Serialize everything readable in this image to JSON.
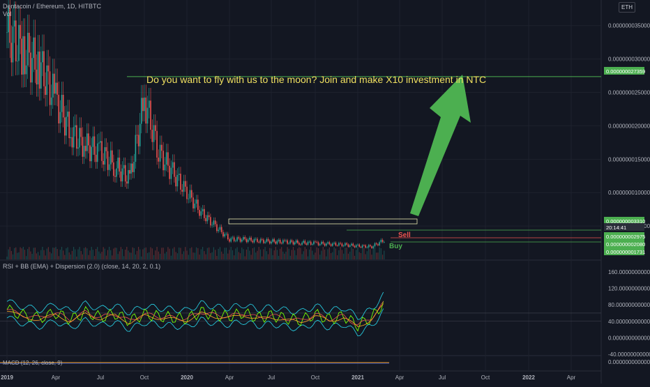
{
  "header": {
    "symbol": "Dentacoin / Ethereum, 1D, HITBTC",
    "volume_label": "Vol",
    "currency_button": "ETH"
  },
  "annotation": {
    "text": "Do you want to fly with us to the moon? Join and make X10 investment in NTC",
    "buy_label_1": "Buy",
    "buy_label_2": "Buy",
    "sell_label": "Sell"
  },
  "indicators": {
    "rsi_title": "RSI + BB (EMA) + Dispersion (2.0) (close, 14, 20, 2, 0.1)",
    "macd_title": "MACD (12, 26, close, 9)"
  },
  "colors": {
    "background": "#131722",
    "up_candle": "#26a69a",
    "down_candle": "#ef5350",
    "arrow": "#4caf50",
    "price_tag": "#4caf50",
    "annotation_text": "#f0e060"
  },
  "chart_data": [
    {
      "type": "candlestick",
      "title": "Dentacoin / Ethereum, 1D, HITBTC",
      "x_ticks": [
        "2019",
        "Apr",
        "Jul",
        "Oct",
        "2020",
        "Apr",
        "Jul",
        "Oct",
        "2021",
        "Apr",
        "Jul",
        "Oct",
        "2022",
        "Apr"
      ],
      "y_ticks": [
        "0.000000035000",
        "0.000000030000",
        "0.000000025000",
        "0.000000020000",
        "0.000000015000",
        "0.000000010000",
        "0.000000005000"
      ],
      "ylim": [
        0,
        3.8e-08
      ],
      "price_tags": [
        "0.000000027359",
        "0.000000003310",
        "20:14:41",
        "0.000000002975",
        "0.000000002080",
        "0.000000001731"
      ],
      "close_series": {
        "x": [
          "2019-01",
          "2019-02",
          "2019-03",
          "2019-04",
          "2019-05",
          "2019-06",
          "2019-07",
          "2019-08",
          "2019-09",
          "2019-10",
          "2019-11",
          "2019-12",
          "2020-01",
          "2020-02",
          "2020-03",
          "2020-04",
          "2020-05",
          "2020-06",
          "2020-07",
          "2020-08",
          "2020-09",
          "2020-10",
          "2020-11",
          "2020-12",
          "2021-01",
          "2021-02",
          "2021-03"
        ],
        "values": [
          3.4e-08,
          3.1e-08,
          2.9e-08,
          2.4e-08,
          1.9e-08,
          1.7e-08,
          1.6e-08,
          1.4e-08,
          1.2e-08,
          2.4e-08,
          1.6e-08,
          1.3e-08,
          1e-08,
          7e-09,
          5e-09,
          3e-09,
          3e-09,
          2.8e-09,
          2.7e-09,
          2.6e-09,
          2.5e-09,
          2.4e-09,
          2.3e-09,
          2.2e-09,
          2e-09,
          1.9e-09,
          3e-09
        ]
      },
      "target_level": 2.7359e-08,
      "grid": true
    },
    {
      "type": "line",
      "title": "RSI + BB (EMA) + Dispersion (2.0) (close, 14, 20, 2, 0.1)",
      "y_ticks": [
        "160.000000000000",
        "120.000000000000",
        "80.000000000000",
        "40.000000000000",
        "0.000000000000",
        "-40.000000000000"
      ],
      "ylim": [
        -40,
        170
      ],
      "rsi_values": [
        68,
        55,
        48,
        60,
        44,
        62,
        50,
        58,
        41,
        57,
        52,
        49,
        46,
        63,
        55,
        52,
        60,
        49,
        54,
        47,
        42,
        57,
        45,
        53,
        30,
        49,
        90
      ]
    },
    {
      "type": "line",
      "title": "MACD (12, 26, close, 9)",
      "y_ticks": [
        "0.000000000000"
      ]
    }
  ]
}
